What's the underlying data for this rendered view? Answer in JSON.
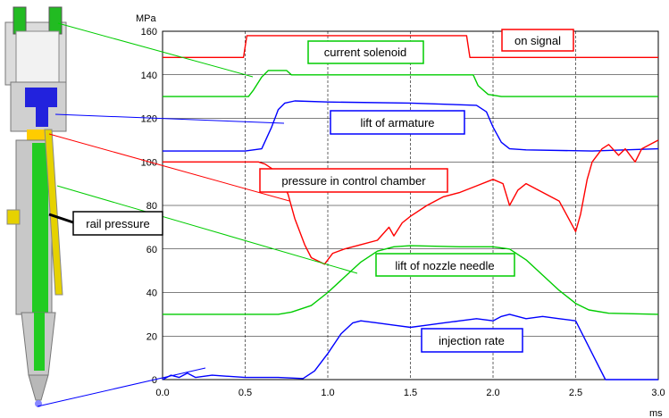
{
  "chart_data": {
    "type": "line",
    "y_unit": "MPa",
    "x_unit": "ms",
    "xlim": [
      0,
      3.0
    ],
    "ylim": [
      0,
      160
    ],
    "x_ticks": [
      "0.0",
      "0.5",
      "1.0",
      "1.5",
      "2.0",
      "2.5",
      "3.0"
    ],
    "y_ticks": [
      "0",
      "20",
      "40",
      "60",
      "80",
      "100",
      "120",
      "140",
      "160"
    ],
    "grid": true,
    "illustration": "injector cross-section with colored parts",
    "series": [
      {
        "name": "on signal",
        "color": "#ff0000",
        "x": [
          0,
          0.49,
          0.51,
          1.84,
          1.86,
          3.0
        ],
        "y": [
          148,
          148,
          158,
          158,
          148,
          148
        ]
      },
      {
        "name": "current solenoid",
        "color": "#00cc00",
        "x": [
          0,
          0.52,
          0.55,
          0.6,
          0.64,
          0.75,
          0.78,
          1.88,
          1.91,
          1.97,
          2.05,
          2.5,
          3.0
        ],
        "y": [
          130,
          130,
          133,
          139,
          142,
          142,
          140,
          140,
          135,
          131,
          130,
          130,
          130
        ]
      },
      {
        "name": "lift of armature",
        "color": "#0000ff",
        "x": [
          0,
          0.5,
          0.6,
          0.66,
          0.7,
          0.74,
          0.8,
          1.0,
          1.5,
          1.9,
          1.96,
          2.0,
          2.05,
          2.1,
          2.2,
          2.6,
          3.0
        ],
        "y": [
          105,
          105,
          106,
          116,
          124,
          127,
          128,
          127.5,
          127,
          126,
          123,
          116,
          109,
          106,
          105.5,
          105,
          106
        ]
      },
      {
        "name": "pressure in control chamber",
        "color": "#ff0000",
        "x": [
          0,
          0.58,
          0.62,
          0.66,
          0.72,
          0.76,
          0.8,
          0.86,
          0.9,
          0.98,
          1.03,
          1.1,
          1.2,
          1.3,
          1.37,
          1.4,
          1.45,
          1.5,
          1.6,
          1.7,
          1.8,
          1.9,
          2.0,
          2.06,
          2.1,
          2.15,
          2.2,
          2.3,
          2.4,
          2.45,
          2.5,
          2.53,
          2.57,
          2.6,
          2.66,
          2.7,
          2.76,
          2.8,
          2.86,
          2.9,
          3.0
        ],
        "y": [
          100,
          100,
          99,
          97,
          92,
          85,
          74,
          62,
          56,
          53,
          58,
          60,
          62,
          64,
          70,
          66,
          72,
          75,
          80,
          84,
          86,
          89,
          92,
          90,
          80,
          87,
          90,
          86,
          82,
          75,
          68,
          76,
          92,
          100,
          106,
          108,
          103,
          106,
          100,
          106,
          110
        ]
      },
      {
        "name": "lift of nozzle needle",
        "color": "#00cc00",
        "x": [
          0,
          0.7,
          0.78,
          0.9,
          1.0,
          1.1,
          1.2,
          1.3,
          1.4,
          1.5,
          1.8,
          2.0,
          2.1,
          2.2,
          2.3,
          2.4,
          2.5,
          2.58,
          2.7,
          3.0
        ],
        "y": [
          30,
          30,
          31,
          34,
          40,
          47,
          54,
          59,
          61,
          61.5,
          61,
          61,
          60,
          55,
          48,
          41,
          35,
          32,
          30.5,
          30
        ]
      },
      {
        "name": "injection rate",
        "color": "#0000ff",
        "x": [
          0,
          0.05,
          0.1,
          0.15,
          0.2,
          0.3,
          0.5,
          0.7,
          0.85,
          0.92,
          1.0,
          1.08,
          1.15,
          1.2,
          1.3,
          1.4,
          1.5,
          1.6,
          1.7,
          1.8,
          1.9,
          2.0,
          2.05,
          2.1,
          2.2,
          2.3,
          2.4,
          2.5,
          2.6,
          2.68,
          2.7,
          3.0
        ],
        "y": [
          0,
          2,
          1,
          3,
          1,
          2,
          1,
          1,
          0.5,
          4,
          12,
          21,
          26,
          27,
          26,
          25,
          24,
          25,
          26,
          27,
          28,
          27,
          29,
          30,
          28,
          29,
          28,
          27,
          12,
          0,
          0,
          0
        ]
      }
    ],
    "annotations": [
      {
        "text": "on signal",
        "color": "#ff0000"
      },
      {
        "text": "current solenoid",
        "color": "#00cc00"
      },
      {
        "text": "lift of armature",
        "color": "#0000ff"
      },
      {
        "text": "pressure in control chamber",
        "color": "#ff0000"
      },
      {
        "text": "rail pressure",
        "color": "#000000"
      },
      {
        "text": "lift of nozzle needle",
        "color": "#00cc00"
      },
      {
        "text": "injection rate",
        "color": "#0000ff"
      }
    ]
  }
}
